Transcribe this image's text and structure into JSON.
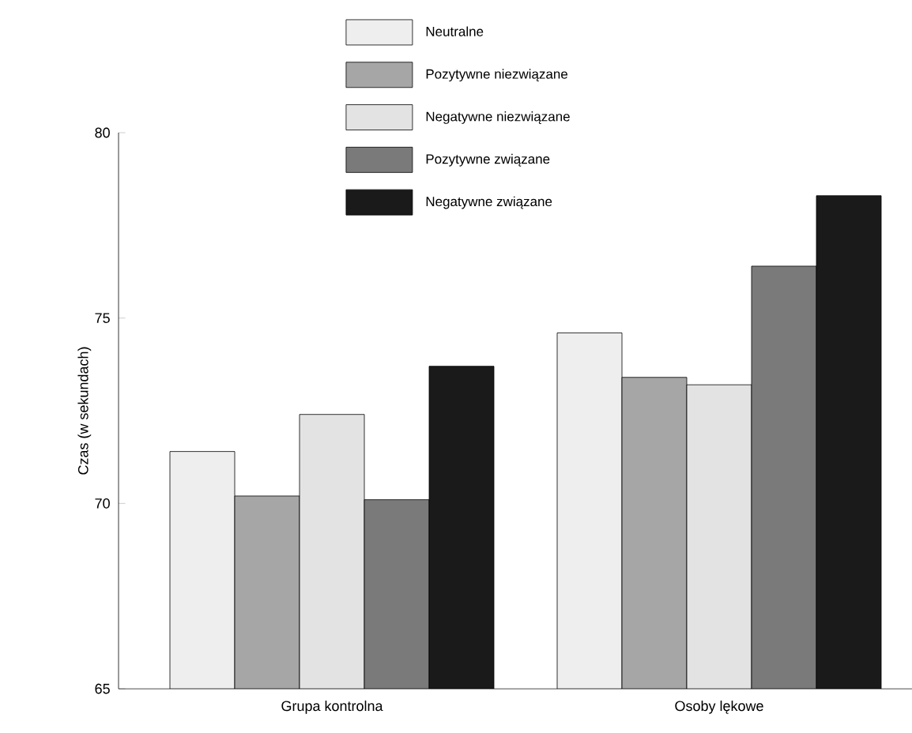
{
  "chart_data": {
    "type": "bar",
    "ylabel": "Czas (w sekundach)",
    "categories": [
      "Grupa kontrolna",
      "Osoby lękowe"
    ],
    "series": [
      {
        "name": "Neutralne",
        "color": "#eeeeee",
        "values": [
          71.4,
          74.6
        ]
      },
      {
        "name": "Pozytywne niezwiązane",
        "color": "#a6a6a6",
        "values": [
          70.2,
          73.4
        ]
      },
      {
        "name": "Negatywne niezwiązane",
        "color": "#e3e3e3",
        "values": [
          72.4,
          73.2
        ]
      },
      {
        "name": "Pozytywne związane",
        "color": "#7a7a7a",
        "values": [
          70.1,
          76.4
        ]
      },
      {
        "name": "Negatywne związane",
        "color": "#1a1a1a",
        "values": [
          73.7,
          78.3
        ]
      }
    ],
    "ylim": [
      65,
      80
    ],
    "yticks": [
      65,
      70,
      75,
      80
    ],
    "grid": false,
    "legend": "top"
  }
}
